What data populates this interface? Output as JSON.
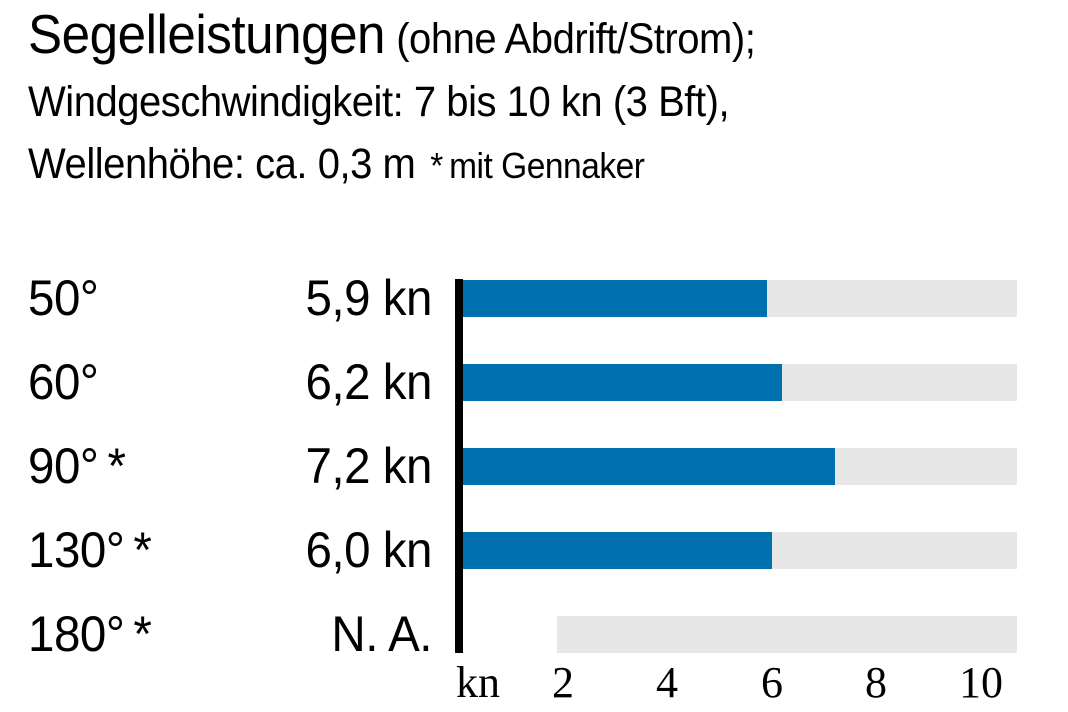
{
  "header": {
    "title": "Segelleistungen",
    "title_note": "(ohne Abdrift/Strom);",
    "subtitle_line2": "Windgeschwindigkeit: 7 bis 10 kn (3 Bft),",
    "subtitle_line3": "Wellenhöhe: ca. 0,3 m",
    "footnote": "* mit Gennaker"
  },
  "chart_data": {
    "type": "bar",
    "orientation": "horizontal",
    "title": "Segelleistungen (ohne Abdrift/Strom); Windgeschwindigkeit: 7 bis 10 kn (3 Bft), Wellenhöhe: ca. 0,3 m",
    "footnote": "* mit Gennaker",
    "unit": "kn",
    "axis_unit_label": "kn",
    "x_ticks": [
      2,
      4,
      6,
      8,
      10
    ],
    "x_max": 10.7,
    "categories": [
      "50°",
      "60°",
      "90° *",
      "130° *",
      "180° *"
    ],
    "values": [
      5.9,
      6.2,
      7.2,
      6.0,
      null
    ],
    "value_labels": [
      "5,9 kn",
      "6,2 kn",
      "7,2 kn",
      "6,0 kn",
      "N. A."
    ],
    "na_row_track_start_kn": 1.9,
    "colors": {
      "bar": "#0071AE",
      "track": "#E7E7E7",
      "axis": "#000000"
    }
  }
}
